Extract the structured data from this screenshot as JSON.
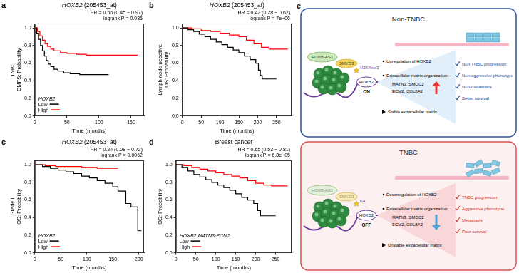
{
  "chart_data": [
    {
      "panel": "a",
      "type": "line",
      "title": "HOXB2 (205453_at)",
      "xlabel": "Time (months)",
      "ylabel": [
        "TNBC",
        "DMFS: Probability"
      ],
      "annotations": [
        "HR = 0.66 (0.45 − 0.97)",
        "logrank P = 0.035"
      ],
      "legend": "lower left",
      "legend_title": "HOXB2",
      "line_style": "step",
      "marker": "none",
      "grid": false,
      "xlim": [
        0,
        170
      ],
      "xticks": [
        0,
        50,
        100,
        150
      ],
      "ylim": [
        0,
        1.05
      ],
      "yticks": [
        {
          "value": 0,
          "label": "0.0"
        },
        {
          "value": 0.2,
          "label": "0.2"
        },
        {
          "value": 0.4,
          "label": "0.4"
        },
        {
          "value": 0.6,
          "label": "0.6"
        },
        {
          "value": 0.8,
          "label": "0.8"
        },
        {
          "value": 1,
          "label": "1.0"
        }
      ],
      "series": [
        {
          "name": "Low",
          "color": "#000000",
          "x": [
            0,
            3,
            6,
            9,
            12,
            15,
            18,
            21,
            25,
            30,
            36,
            45,
            55,
            70,
            90,
            115
          ],
          "values": [
            1,
            0.94,
            0.87,
            0.8,
            0.74,
            0.68,
            0.63,
            0.59,
            0.56,
            0.53,
            0.51,
            0.49,
            0.48,
            0.47,
            0.47,
            0.47
          ]
        },
        {
          "name": "High",
          "color": "#ff0000",
          "x": [
            0,
            4,
            8,
            12,
            16,
            20,
            25,
            30,
            40,
            50,
            65,
            80,
            100,
            130,
            160
          ],
          "values": [
            1,
            0.96,
            0.91,
            0.86,
            0.82,
            0.79,
            0.76,
            0.74,
            0.72,
            0.71,
            0.7,
            0.69,
            0.69,
            0.69,
            0.69
          ]
        }
      ]
    },
    {
      "panel": "b",
      "type": "line",
      "title": "HOXB2 (205453_at)",
      "xlabel": "Time (months)",
      "ylabel": [
        "Lymph node negative",
        "OS: Probability"
      ],
      "annotations": [
        "HR = 0.42 (0.28 − 0.62)",
        "logrank P = 7e−06"
      ],
      "line_style": "step",
      "marker": "none",
      "grid": false,
      "xlim": [
        0,
        290
      ],
      "xticks": [
        0,
        50,
        100,
        150,
        200,
        250
      ],
      "ylim": [
        0,
        1.05
      ],
      "yticks": [
        {
          "value": 0,
          "label": "0.0"
        },
        {
          "value": 0.2,
          "label": "0.2"
        },
        {
          "value": 0.4,
          "label": "0.4"
        },
        {
          "value": 0.6,
          "label": "0.6"
        },
        {
          "value": 0.8,
          "label": "0.8"
        },
        {
          "value": 1,
          "label": "1.0"
        }
      ],
      "series": [
        {
          "color": "#000000",
          "x": [
            0,
            15,
            30,
            45,
            60,
            75,
            90,
            105,
            120,
            135,
            150,
            165,
            180,
            195,
            202,
            207,
            212,
            250
          ],
          "values": [
            1,
            0.98,
            0.96,
            0.93,
            0.9,
            0.87,
            0.84,
            0.81,
            0.78,
            0.75,
            0.72,
            0.68,
            0.64,
            0.6,
            0.52,
            0.46,
            0.42,
            0.42
          ]
        },
        {
          "color": "#ff0000",
          "x": [
            0,
            25,
            50,
            75,
            100,
            125,
            150,
            170,
            190,
            210,
            230,
            280
          ],
          "values": [
            1,
            0.99,
            0.97,
            0.96,
            0.94,
            0.92,
            0.9,
            0.86,
            0.82,
            0.78,
            0.76,
            0.76
          ]
        }
      ]
    },
    {
      "panel": "c",
      "type": "line",
      "title": "HOXB2 (205453_at)",
      "xlabel": "Time (months)",
      "ylabel": [
        "Grade I",
        "OS: Probability"
      ],
      "annotations": [
        "HR = 0.24 (0.08 − 0.72)",
        "logrank P = 0.0062"
      ],
      "legend": "lower left",
      "legend_title": "HOXB2",
      "line_style": "step",
      "marker": "none",
      "grid": false,
      "xlim": [
        0,
        210
      ],
      "xticks": [
        0,
        50,
        100,
        150,
        200
      ],
      "ylim": [
        0,
        1.05
      ],
      "yticks": [
        {
          "value": 0,
          "label": "0.0"
        },
        {
          "value": 0.2,
          "label": "0.2"
        },
        {
          "value": 0.4,
          "label": "0.4"
        },
        {
          "value": 0.6,
          "label": "0.6"
        },
        {
          "value": 0.8,
          "label": "0.8"
        },
        {
          "value": 1,
          "label": "1.0"
        }
      ],
      "series": [
        {
          "name": "Low",
          "color": "#000000",
          "x": [
            0,
            15,
            30,
            45,
            60,
            75,
            90,
            105,
            120,
            135,
            150,
            160,
            175,
            185,
            198,
            205
          ],
          "values": [
            1,
            0.98,
            0.96,
            0.94,
            0.92,
            0.9,
            0.87,
            0.85,
            0.82,
            0.79,
            0.75,
            0.7,
            0.56,
            0.52,
            0.25,
            0.25
          ]
        },
        {
          "name": "High",
          "color": "#ff0000",
          "x": [
            0,
            20,
            40,
            60,
            90,
            120,
            160
          ],
          "values": [
            1,
            0.99,
            0.98,
            0.98,
            0.97,
            0.96,
            0.96
          ]
        }
      ]
    },
    {
      "panel": "d",
      "type": "line",
      "title": "Breast cancer",
      "xlabel": "Time (months)",
      "ylabel": [
        "OS: Probability"
      ],
      "annotations": [
        "HR = 0.65 (0.53 − 0.81)",
        "logrank P = 6.8e−05"
      ],
      "legend": "lower left",
      "legend_title": "HOXB2·MATN3·ECM2",
      "line_style": "step",
      "marker": "none",
      "grid": false,
      "xlim": [
        0,
        290
      ],
      "xticks": [
        0,
        50,
        100,
        150,
        200,
        250
      ],
      "ylim": [
        0,
        1.05
      ],
      "yticks": [
        {
          "value": 0,
          "label": "0.0"
        },
        {
          "value": 0.2,
          "label": "0.2"
        },
        {
          "value": 0.4,
          "label": "0.4"
        },
        {
          "value": 0.6,
          "label": "0.6"
        },
        {
          "value": 0.8,
          "label": "0.8"
        },
        {
          "value": 1,
          "label": "1.0"
        }
      ],
      "series": [
        {
          "name": "Low",
          "color": "#000000",
          "x": [
            0,
            15,
            30,
            45,
            60,
            75,
            90,
            105,
            120,
            135,
            150,
            165,
            180,
            195,
            205,
            212,
            250
          ],
          "values": [
            1,
            0.97,
            0.93,
            0.89,
            0.86,
            0.83,
            0.8,
            0.77,
            0.74,
            0.71,
            0.67,
            0.63,
            0.6,
            0.56,
            0.48,
            0.42,
            0.42
          ]
        },
        {
          "name": "High",
          "color": "#ff0000",
          "x": [
            0,
            20,
            40,
            60,
            80,
            100,
            120,
            140,
            160,
            180,
            200,
            220,
            240,
            280
          ],
          "values": [
            1,
            0.99,
            0.97,
            0.95,
            0.93,
            0.91,
            0.89,
            0.87,
            0.85,
            0.82,
            0.79,
            0.77,
            0.76,
            0.76
          ]
        }
      ]
    }
  ],
  "diagram": {
    "panel": "e",
    "boxes": [
      {
        "title": "Non-TNBC",
        "lncrna": "HOXB-AS1",
        "enzyme": "SMYD3",
        "histone_mark": "H3K4me3",
        "gene": "HOXB2",
        "state": "ON",
        "points": [
          "Upregulation of HOXB2",
          "Extracellular matrix organization"
        ],
        "genes": [
          "MATN3, SMOC2",
          "ECM2, COL8A2"
        ],
        "trend": "up",
        "matrix": "Stable extracellular matrix",
        "outcomes": [
          "Non-TNBC  progression",
          "Non-aggressive phenotype",
          "Non-metastasis",
          "Better survival"
        ]
      },
      {
        "title": "TNBC",
        "lncrna": "HOXB-AS1",
        "enzyme": "SMYD3",
        "histone_mark": "K4",
        "gene": "HOXB2",
        "state": "OFF",
        "points": [
          "Downregulation of HOXB2",
          "Extracellular matrix organization"
        ],
        "genes": [
          "MATN3, SMOC2",
          "ECM2, COL8A2"
        ],
        "trend": "down",
        "matrix": "Unstable extracellular matrix",
        "outcomes": [
          "TNBC progression",
          "Aggressive phenotype",
          "Metastasis",
          "Poor survival"
        ]
      }
    ]
  }
}
